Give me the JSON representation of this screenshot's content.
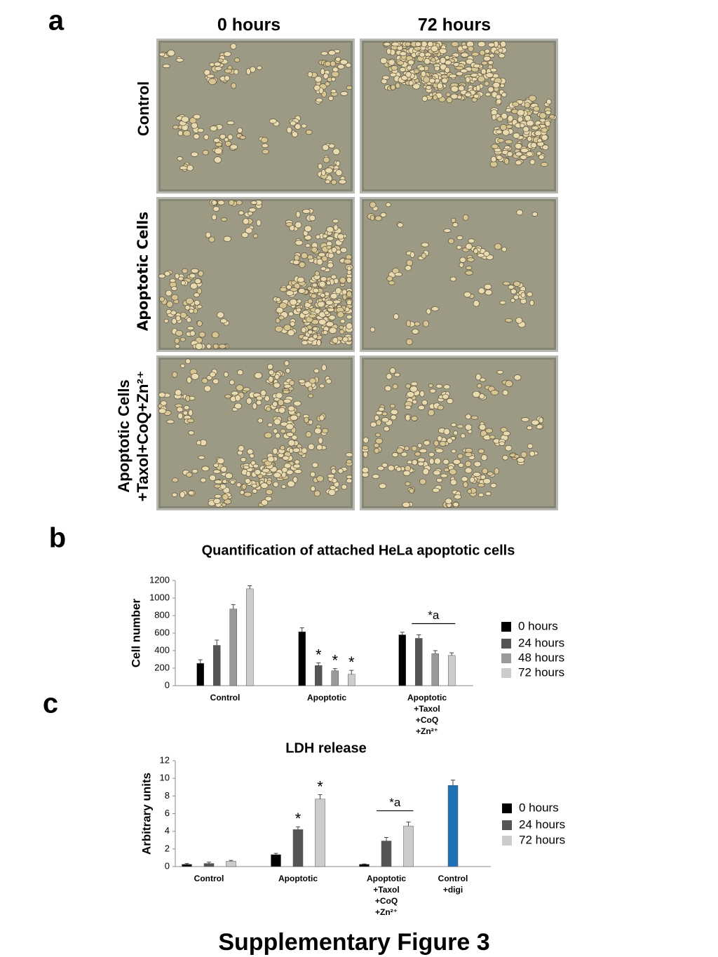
{
  "panel_a": {
    "label": "a",
    "columns": [
      "0 hours",
      "72 hours"
    ],
    "rows": [
      [
        "Control"
      ],
      [
        "Apoptotic Cells"
      ],
      [
        "Apoptotic Cells",
        "+Taxol+CoQ+Zn²⁺"
      ]
    ]
  },
  "panel_b": {
    "label": "b"
  },
  "panel_c": {
    "label": "c"
  },
  "chart_data": [
    {
      "type": "bar",
      "title": "Quantification of attached HeLa apoptotic cells",
      "y_label": "Cell number",
      "categories": [
        "Control",
        "Apoptotic",
        "Apoptotic\n+Taxol\n+CoQ\n+Zn²⁺"
      ],
      "series": [
        {
          "name": "0 hours",
          "color": "#000000",
          "values": [
            255,
            615,
            580
          ],
          "errors": [
            40,
            45,
            30
          ],
          "annotations": [
            null,
            null,
            null
          ]
        },
        {
          "name": "24 hours",
          "color": "#555555",
          "values": [
            460,
            230,
            540
          ],
          "errors": [
            60,
            30,
            40
          ],
          "annotations": [
            null,
            "*",
            null
          ]
        },
        {
          "name": "48 hours",
          "color": "#999999",
          "values": [
            875,
            170,
            365
          ],
          "errors": [
            50,
            25,
            35
          ],
          "annotations": [
            null,
            "*",
            null
          ]
        },
        {
          "name": "72 hours",
          "color": "#cccccc",
          "values": [
            1105,
            130,
            345
          ],
          "errors": [
            35,
            45,
            30
          ],
          "annotations": [
            null,
            "*",
            null
          ]
        }
      ],
      "bracket": {
        "label": "*a",
        "category": "Apoptotic\n+Taxol\n+CoQ\n+Zn²⁺"
      },
      "ylim": [
        0,
        1200
      ],
      "yticks": [
        0,
        200,
        400,
        600,
        800,
        1000,
        1200
      ]
    },
    {
      "type": "bar",
      "title": "LDH release",
      "y_label": "Arbitrary units",
      "categories": [
        "Control",
        "Apoptotic",
        "Apoptotic\n+Taxol\n+CoQ\n+Zn²⁺",
        "Control\n+digi"
      ],
      "series": [
        {
          "name": "0 hours",
          "color": "#000000",
          "values": [
            0.25,
            1.35,
            0.25,
            null
          ],
          "errors": [
            0.1,
            0.15,
            0.05,
            null
          ],
          "annotations": [
            null,
            null,
            null,
            null
          ]
        },
        {
          "name": "24 hours",
          "color": "#555555",
          "values": [
            0.35,
            4.2,
            2.9,
            null
          ],
          "errors": [
            0.15,
            0.3,
            0.4,
            null
          ],
          "annotations": [
            null,
            "*",
            null,
            null
          ]
        },
        {
          "name": "72 hours",
          "color": "#cccccc",
          "values": [
            0.6,
            7.65,
            4.6,
            null
          ],
          "errors": [
            0.1,
            0.5,
            0.45,
            null
          ],
          "annotations": [
            null,
            "*",
            null,
            null
          ]
        },
        {
          "color": "#1f72b8",
          "values": [
            null,
            null,
            null,
            9.2
          ],
          "errors": [
            null,
            null,
            null,
            0.6
          ],
          "annotations": [
            null,
            null,
            null,
            null
          ]
        }
      ],
      "bracket": {
        "label": "*a",
        "category": "Apoptotic\n+Taxol\n+CoQ\n+Zn²⁺"
      },
      "ylim": [
        0,
        12
      ],
      "yticks": [
        0,
        2,
        4,
        6,
        8,
        10,
        12
      ]
    }
  ],
  "footer": "Supplementary Figure 3"
}
